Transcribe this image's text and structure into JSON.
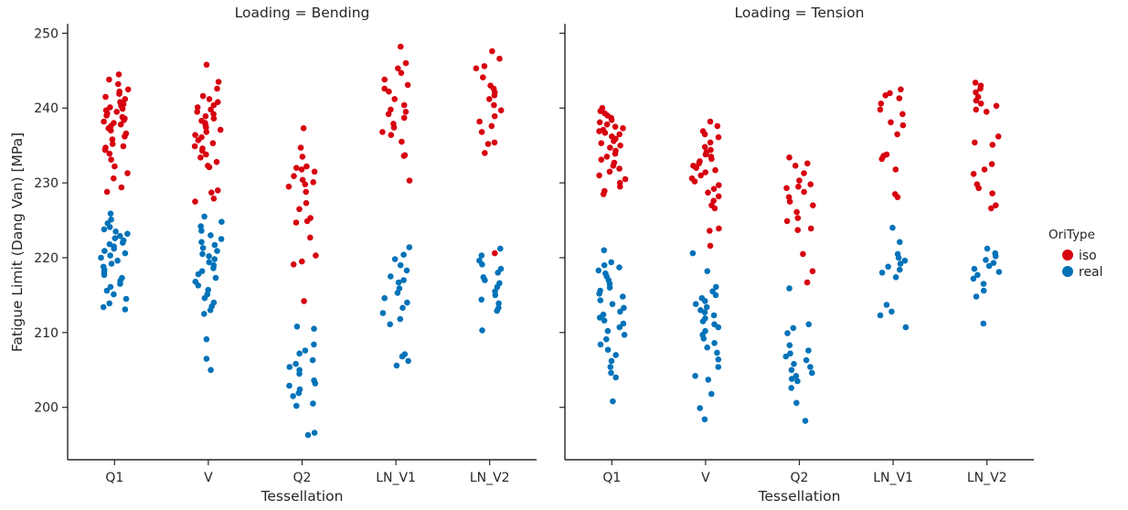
{
  "chart_data": {
    "type": "scatter",
    "kind": "strip",
    "shared_y": true,
    "ylabel": "Fatigue Limit (Dang Van) [MPa]",
    "xlabel": "Tessellation",
    "ylim": [
      193,
      252
    ],
    "yticks": [
      200,
      210,
      220,
      230,
      240,
      250
    ],
    "categories": [
      "Q1",
      "V",
      "Q2",
      "LN_V1",
      "LN_V2"
    ],
    "legend": {
      "title": "OriType",
      "position": "right",
      "entries": [
        {
          "label": "iso",
          "color": "#d7000f"
        },
        {
          "label": "real",
          "color": "#0072b8"
        }
      ]
    },
    "panels": [
      {
        "title": "Loading = Bending",
        "series": [
          {
            "name": "iso",
            "color": "#d7000f",
            "points": {
              "Q1": [
                244.5,
                243.8,
                243.2,
                242.5,
                242.2,
                241.9,
                241.5,
                241.2,
                240.8,
                240.5,
                240.3,
                240.1,
                239.9,
                239.7,
                239.5,
                239.3,
                239.0,
                238.8,
                238.6,
                238.4,
                238.2,
                238.0,
                237.8,
                237.6,
                237.3,
                237.0,
                236.6,
                236.2,
                235.8,
                235.2,
                234.9,
                234.7,
                234.4,
                233.9,
                233.1,
                232.2,
                231.3,
                230.6,
                229.4,
                228.8
              ],
              "V": [
                245.8,
                243.5,
                242.6,
                241.6,
                241.2,
                240.8,
                240.4,
                240.1,
                239.8,
                239.5,
                239.2,
                238.9,
                238.6,
                238.3,
                238.0,
                237.7,
                237.4,
                237.1,
                236.8,
                236.4,
                236.1,
                235.7,
                235.3,
                234.9,
                234.6,
                234.3,
                233.8,
                233.4,
                232.8,
                232.3,
                232.1,
                229.0,
                228.7,
                227.9,
                227.5
              ],
              "Q2": [
                237.3,
                234.7,
                233.5,
                232.2,
                232.0,
                231.8,
                231.5,
                230.9,
                230.4,
                230.1,
                229.8,
                229.5,
                228.8,
                227.3,
                226.5,
                225.3,
                224.9,
                224.7,
                222.7,
                220.3,
                219.5,
                219.1,
                214.2
              ],
              "LN_V1": [
                248.2,
                246.0,
                245.3,
                244.7,
                243.8,
                243.1,
                242.6,
                242.2,
                241.2,
                240.4,
                239.8,
                239.5,
                239.2,
                238.7,
                237.9,
                237.4,
                236.8,
                236.4,
                235.5,
                233.7,
                233.6,
                230.3
              ],
              "LN_V2": [
                247.6,
                246.6,
                245.6,
                245.3,
                244.1,
                243.0,
                242.6,
                242.1,
                241.7,
                241.2,
                240.4,
                239.7,
                238.9,
                238.2,
                237.6,
                236.8,
                235.4,
                235.2,
                234.0,
                220.6
              ]
            }
          },
          {
            "name": "real",
            "color": "#0072b8",
            "points": {
              "Q1": [
                225.9,
                225.1,
                224.6,
                224.1,
                223.8,
                223.5,
                223.2,
                222.9,
                222.6,
                222.3,
                222.0,
                221.8,
                221.5,
                221.2,
                220.9,
                220.6,
                220.3,
                220.0,
                219.6,
                219.2,
                218.8,
                218.4,
                218.1,
                217.7,
                217.3,
                216.9,
                216.5,
                216.1,
                215.6,
                215.1,
                214.5,
                213.9,
                213.4,
                213.1
              ],
              "V": [
                225.5,
                224.8,
                224.2,
                223.6,
                223.0,
                222.5,
                222.1,
                221.7,
                221.3,
                220.9,
                220.5,
                220.2,
                219.8,
                219.4,
                219.0,
                218.6,
                218.2,
                217.8,
                217.3,
                216.8,
                216.3,
                215.7,
                215.1,
                214.6,
                214.0,
                213.5,
                213.0,
                212.5,
                209.1,
                206.5,
                205.0
              ],
              "Q2": [
                210.8,
                210.5,
                208.4,
                207.6,
                207.2,
                206.3,
                205.8,
                205.4,
                205.0,
                204.5,
                203.6,
                203.2,
                202.9,
                202.4,
                201.9,
                201.5,
                200.5,
                200.2,
                196.6,
                196.3
              ],
              "LN_V1": [
                221.4,
                220.4,
                219.8,
                219.0,
                218.3,
                217.5,
                217.0,
                216.7,
                215.9,
                215.3,
                214.6,
                214.0,
                213.3,
                212.6,
                211.8,
                211.1,
                207.1,
                206.8,
                206.2,
                205.6
              ],
              "LN_V2": [
                221.2,
                220.3,
                219.6,
                219.1,
                218.5,
                218.0,
                217.4,
                217.0,
                216.6,
                216.1,
                215.5,
                215.0,
                214.4,
                213.9,
                213.3,
                212.9,
                210.3
              ]
            }
          }
        ]
      },
      {
        "title": "Loading = Tension",
        "series": [
          {
            "name": "iso",
            "color": "#d7000f",
            "points": {
              "Q1": [
                240.0,
                239.6,
                239.3,
                239.0,
                238.7,
                238.4,
                238.1,
                237.8,
                237.5,
                237.3,
                237.1,
                236.9,
                236.7,
                236.5,
                236.2,
                235.9,
                235.6,
                235.3,
                235.0,
                234.7,
                234.3,
                233.9,
                233.5,
                233.1,
                232.7,
                232.3,
                231.9,
                231.5,
                231.0,
                230.5,
                230.0,
                229.5,
                228.9,
                228.5
              ],
              "V": [
                238.2,
                237.6,
                236.9,
                236.5,
                236.1,
                235.4,
                234.8,
                234.4,
                234.1,
                233.8,
                233.5,
                233.2,
                232.9,
                232.6,
                232.3,
                232.0,
                231.7,
                231.4,
                231.0,
                230.6,
                230.2,
                229.7,
                229.2,
                228.7,
                228.2,
                227.6,
                227.0,
                226.6,
                223.9,
                223.6,
                221.6
              ],
              "Q2": [
                233.4,
                232.6,
                232.3,
                231.3,
                230.3,
                229.8,
                229.5,
                229.3,
                228.8,
                228.1,
                227.5,
                227.0,
                226.1,
                225.3,
                224.9,
                223.9,
                223.7,
                220.5,
                218.2,
                216.7
              ],
              "LN_V1": [
                242.5,
                242.0,
                241.7,
                241.3,
                240.6,
                239.8,
                239.2,
                238.1,
                237.7,
                236.5,
                233.8,
                233.6,
                233.2,
                231.8,
                228.5,
                228.1
              ],
              "LN_V2": [
                243.4,
                243.0,
                242.6,
                242.1,
                241.5,
                241.0,
                240.6,
                240.3,
                239.8,
                239.5,
                236.2,
                235.4,
                235.1,
                232.5,
                231.8,
                231.2,
                229.8,
                229.3,
                228.6,
                227.0,
                226.6
              ]
            }
          },
          {
            "name": "real",
            "color": "#0072b8",
            "points": {
              "Q1": [
                221.0,
                219.4,
                219.0,
                218.7,
                218.3,
                217.9,
                217.5,
                217.0,
                216.5,
                216.0,
                215.6,
                215.2,
                214.8,
                214.3,
                213.8,
                213.3,
                212.8,
                212.4,
                212.0,
                211.6,
                211.2,
                210.7,
                210.2,
                209.7,
                209.1,
                208.4,
                207.7,
                207.0,
                206.2,
                205.4,
                204.6,
                204.0,
                200.8
              ],
              "V": [
                220.6,
                218.2,
                216.1,
                215.5,
                215.0,
                214.6,
                214.2,
                213.8,
                213.4,
                213.0,
                212.7,
                212.3,
                211.9,
                211.5,
                211.1,
                210.7,
                210.2,
                209.7,
                209.2,
                208.6,
                208.0,
                207.3,
                206.4,
                205.4,
                204.2,
                203.7,
                201.8,
                199.9,
                198.4
              ],
              "Q2": [
                215.9,
                211.1,
                210.6,
                209.9,
                208.3,
                207.6,
                207.2,
                206.8,
                206.3,
                205.8,
                205.4,
                205.0,
                204.6,
                204.2,
                203.8,
                203.5,
                202.6,
                200.6,
                198.2
              ],
              "LN_V1": [
                224.0,
                222.1,
                220.5,
                220.0,
                219.6,
                219.2,
                218.8,
                218.4,
                218.0,
                217.4,
                213.7,
                212.8,
                212.3,
                210.7
              ],
              "LN_V2": [
                221.2,
                220.6,
                220.2,
                219.7,
                219.3,
                218.9,
                218.5,
                218.1,
                217.7,
                217.2,
                216.5,
                215.6,
                214.8,
                211.2
              ]
            }
          }
        ]
      }
    ]
  }
}
